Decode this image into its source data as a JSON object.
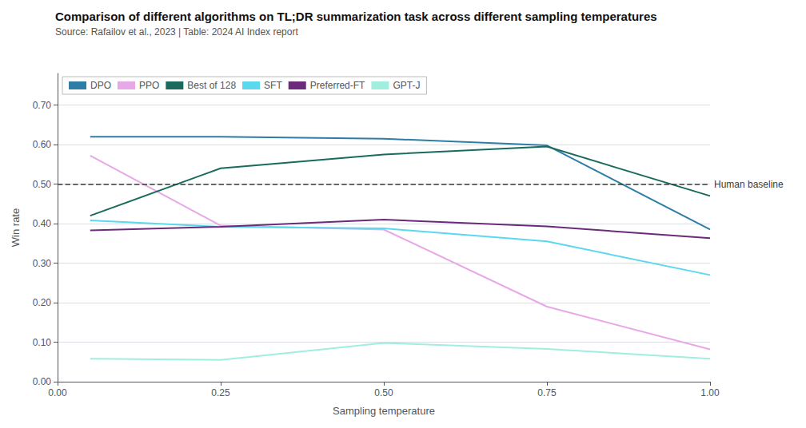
{
  "chart_data": {
    "type": "line",
    "title": "Comparison of different algorithms on TL;DR summarization task across different sampling temperatures",
    "subtitle": "Source: Rafailov et al., 2023 | Table: 2024 AI Index report",
    "xlabel": "Sampling temperature",
    "ylabel": "Win rate",
    "x": [
      0.05,
      0.25,
      0.5,
      0.75,
      1.0
    ],
    "series": [
      {
        "name": "DPO",
        "color": "#2e7da6",
        "values": [
          0.62,
          0.62,
          0.615,
          0.598,
          0.385
        ]
      },
      {
        "name": "PPO",
        "color": "#e8a8e8",
        "values": [
          0.572,
          0.395,
          0.385,
          0.19,
          0.082
        ]
      },
      {
        "name": "Best of 128",
        "color": "#1a6b5e",
        "values": [
          0.42,
          0.54,
          0.575,
          0.595,
          0.47
        ]
      },
      {
        "name": "SFT",
        "color": "#5ad8ee",
        "values": [
          0.408,
          0.392,
          0.388,
          0.355,
          0.27
        ]
      },
      {
        "name": "Preferred-FT",
        "color": "#6b2b7a",
        "values": [
          0.383,
          0.392,
          0.41,
          0.393,
          0.363
        ]
      },
      {
        "name": "GPT-J",
        "color": "#a0eede",
        "values": [
          0.058,
          0.055,
          0.098,
          0.083,
          0.058
        ]
      }
    ],
    "annotations": [
      {
        "text": "Human baseline",
        "y": 0.5,
        "line_style": "dashed",
        "color": "#3a3a3a"
      }
    ],
    "xlim": [
      0.0,
      1.0
    ],
    "ylim": [
      0.0,
      0.78
    ],
    "xticks": [
      {
        "value": 0.0,
        "label": "0.00"
      },
      {
        "value": 0.25,
        "label": "0.25"
      },
      {
        "value": 0.5,
        "label": "0.50"
      },
      {
        "value": 0.75,
        "label": "0.75"
      },
      {
        "value": 1.0,
        "label": "1.00"
      }
    ],
    "yticks": [
      {
        "value": 0.0,
        "label": "0.00"
      },
      {
        "value": 0.1,
        "label": "0.10"
      },
      {
        "value": 0.2,
        "label": "0.20"
      },
      {
        "value": 0.3,
        "label": "0.30"
      },
      {
        "value": 0.4,
        "label": "0.40"
      },
      {
        "value": 0.5,
        "label": "0.50"
      },
      {
        "value": 0.6,
        "label": "0.60"
      },
      {
        "value": 0.7,
        "label": "0.70"
      }
    ],
    "grid": true,
    "legend": "upper left"
  }
}
